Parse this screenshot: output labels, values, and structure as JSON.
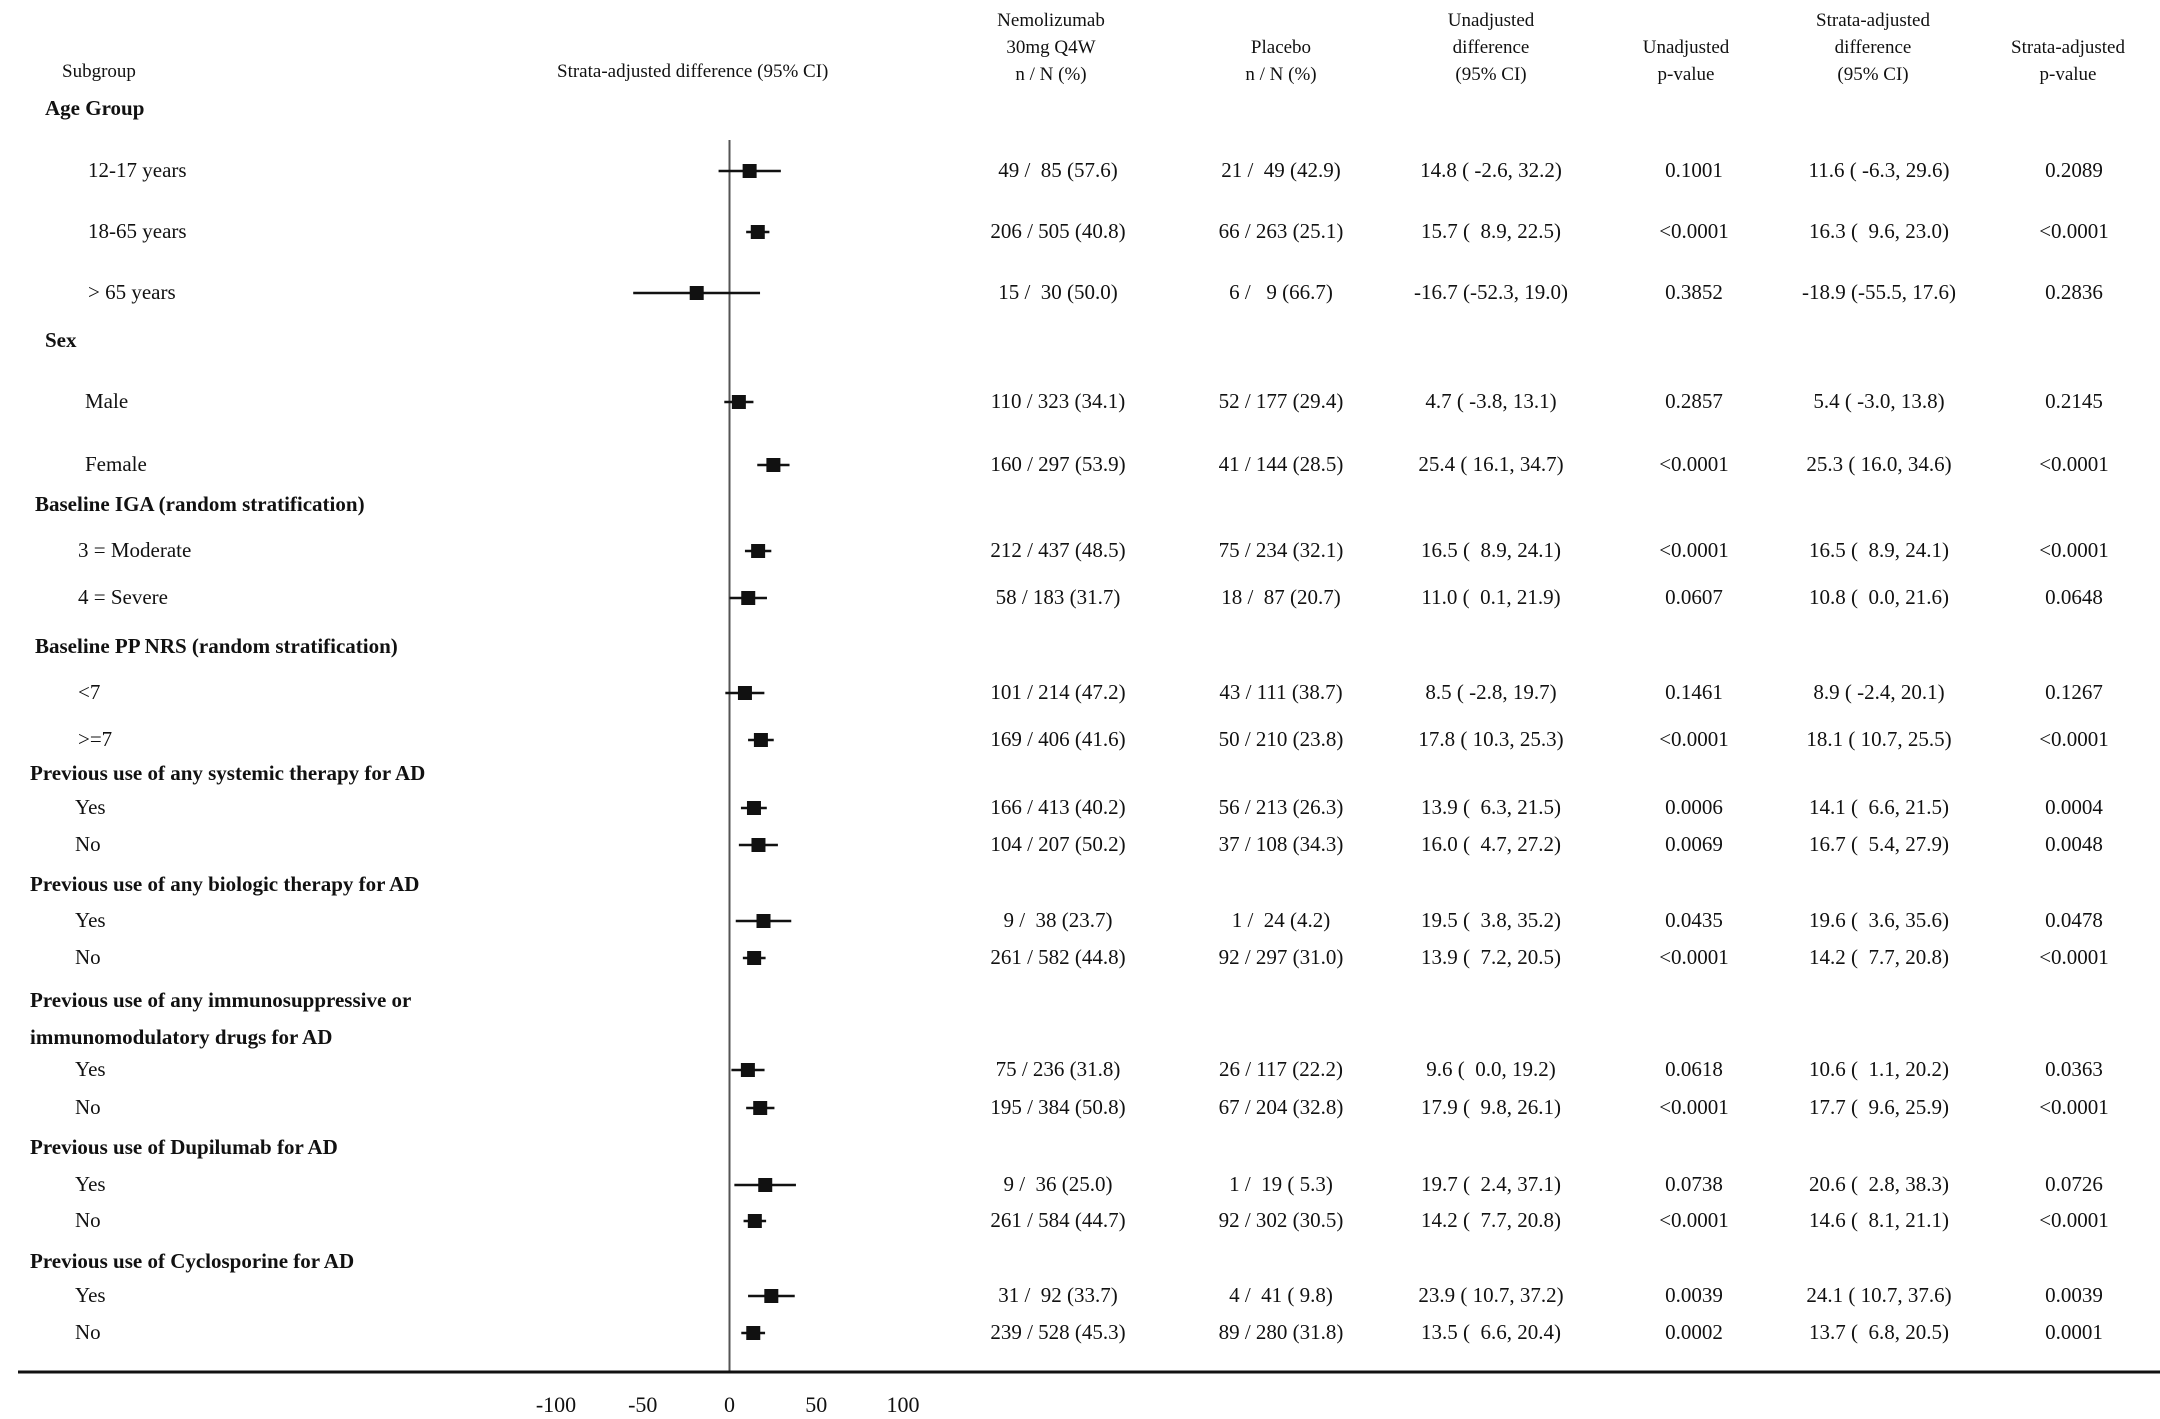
{
  "headers": {
    "subgroup": "Subgroup",
    "plot": "Strata-adjusted difference (95% CI)",
    "nemo": [
      "Nemolizumab",
      "30mg Q4W",
      "n / N (%)"
    ],
    "placebo": [
      "Placebo",
      "n / N (%)"
    ],
    "unadj_diff": [
      "Unadjusted",
      "difference",
      "(95% CI)"
    ],
    "unadj_p": [
      "Unadjusted",
      "p-value"
    ],
    "adj_diff": [
      "Strata-adjusted",
      "difference",
      "(95% CI)"
    ],
    "adj_p": [
      "Strata-adjusted",
      "p-value"
    ]
  },
  "groups": [
    {
      "label": "Age Group"
    },
    {
      "label": "Sex"
    },
    {
      "label": "Baseline IGA (random stratification)"
    },
    {
      "label": "Baseline PP NRS (random stratification)"
    },
    {
      "label": "Previous use of any systemic therapy for AD"
    },
    {
      "label": "Previous use of any biologic therapy for AD"
    },
    {
      "label": "Previous use of any immunosuppressive or"
    },
    {
      "label": "immunomodulatory drugs for AD"
    },
    {
      "label": "Previous use of Dupilumab for AD"
    },
    {
      "label": "Previous use of Cyclosporine for AD"
    }
  ],
  "rows": [
    {
      "label": "12-17 years",
      "nemo": "49 /  85 (57.6)",
      "placebo": "21 /  49 (42.9)",
      "unadj_diff": "14.8 ( -2.6, 32.2)",
      "unadj_p": "0.1001",
      "adj_diff": "11.6 ( -6.3, 29.6)",
      "adj_p": "0.2089"
    },
    {
      "label": "18-65 years",
      "nemo": "206 / 505 (40.8)",
      "placebo": "66 / 263 (25.1)",
      "unadj_diff": "15.7 (  8.9, 22.5)",
      "unadj_p": "<0.0001",
      "adj_diff": "16.3 (  9.6, 23.0)",
      "adj_p": "<0.0001"
    },
    {
      "label": "> 65 years",
      "nemo": "15 /  30 (50.0)",
      "placebo": "6 /   9 (66.7)",
      "unadj_diff": "-16.7 (-52.3, 19.0)",
      "unadj_p": "0.3852",
      "adj_diff": "-18.9 (-55.5, 17.6)",
      "adj_p": "0.2836"
    },
    {
      "label": "Male",
      "nemo": "110 / 323 (34.1)",
      "placebo": "52 / 177 (29.4)",
      "unadj_diff": "4.7 ( -3.8, 13.1)",
      "unadj_p": "0.2857",
      "adj_diff": "5.4 ( -3.0, 13.8)",
      "adj_p": "0.2145"
    },
    {
      "label": "Female",
      "nemo": "160 / 297 (53.9)",
      "placebo": "41 / 144 (28.5)",
      "unadj_diff": "25.4 ( 16.1, 34.7)",
      "unadj_p": "<0.0001",
      "adj_diff": "25.3 ( 16.0, 34.6)",
      "adj_p": "<0.0001"
    },
    {
      "label": "3 = Moderate",
      "nemo": "212 / 437 (48.5)",
      "placebo": "75 / 234 (32.1)",
      "unadj_diff": "16.5 (  8.9, 24.1)",
      "unadj_p": "<0.0001",
      "adj_diff": "16.5 (  8.9, 24.1)",
      "adj_p": "<0.0001"
    },
    {
      "label": "4 = Severe",
      "nemo": "58 / 183 (31.7)",
      "placebo": "18 /  87 (20.7)",
      "unadj_diff": "11.0 (  0.1, 21.9)",
      "unadj_p": "0.0607",
      "adj_diff": "10.8 (  0.0, 21.6)",
      "adj_p": "0.0648"
    },
    {
      "label": "<7",
      "nemo": "101 / 214 (47.2)",
      "placebo": "43 / 111 (38.7)",
      "unadj_diff": "8.5 ( -2.8, 19.7)",
      "unadj_p": "0.1461",
      "adj_diff": "8.9 ( -2.4, 20.1)",
      "adj_p": "0.1267"
    },
    {
      "label": ">=7",
      "nemo": "169 / 406 (41.6)",
      "placebo": "50 / 210 (23.8)",
      "unadj_diff": "17.8 ( 10.3, 25.3)",
      "unadj_p": "<0.0001",
      "adj_diff": "18.1 ( 10.7, 25.5)",
      "adj_p": "<0.0001"
    },
    {
      "label": "Yes",
      "nemo": "166 / 413 (40.2)",
      "placebo": "56 / 213 (26.3)",
      "unadj_diff": "13.9 (  6.3, 21.5)",
      "unadj_p": "0.0006",
      "adj_diff": "14.1 (  6.6, 21.5)",
      "adj_p": "0.0004"
    },
    {
      "label": "No",
      "nemo": "104 / 207 (50.2)",
      "placebo": "37 / 108 (34.3)",
      "unadj_diff": "16.0 (  4.7, 27.2)",
      "unadj_p": "0.0069",
      "adj_diff": "16.7 (  5.4, 27.9)",
      "adj_p": "0.0048"
    },
    {
      "label": "Yes",
      "nemo": "9 /  38 (23.7)",
      "placebo": "1 /  24 (4.2)",
      "unadj_diff": "19.5 (  3.8, 35.2)",
      "unadj_p": "0.0435",
      "adj_diff": "19.6 (  3.6, 35.6)",
      "adj_p": "0.0478"
    },
    {
      "label": "No",
      "nemo": "261 / 582 (44.8)",
      "placebo": "92 / 297 (31.0)",
      "unadj_diff": "13.9 (  7.2, 20.5)",
      "unadj_p": "<0.0001",
      "adj_diff": "14.2 (  7.7, 20.8)",
      "adj_p": "<0.0001"
    },
    {
      "label": "Yes",
      "nemo": "75 / 236 (31.8)",
      "placebo": "26 / 117 (22.2)",
      "unadj_diff": "9.6 (  0.0, 19.2)",
      "unadj_p": "0.0618",
      "adj_diff": "10.6 (  1.1, 20.2)",
      "adj_p": "0.0363"
    },
    {
      "label": "No",
      "nemo": "195 / 384 (50.8)",
      "placebo": "67 / 204 (32.8)",
      "unadj_diff": "17.9 (  9.8, 26.1)",
      "unadj_p": "<0.0001",
      "adj_diff": "17.7 (  9.6, 25.9)",
      "adj_p": "<0.0001"
    },
    {
      "label": "Yes",
      "nemo": "9 /  36 (25.0)",
      "placebo": "1 /  19 ( 5.3)",
      "unadj_diff": "19.7 (  2.4, 37.1)",
      "unadj_p": "0.0738",
      "adj_diff": "20.6 (  2.8, 38.3)",
      "adj_p": "0.0726"
    },
    {
      "label": "No",
      "nemo": "261 / 584 (44.7)",
      "placebo": "92 / 302 (30.5)",
      "unadj_diff": "14.2 (  7.7, 20.8)",
      "unadj_p": "<0.0001",
      "adj_diff": "14.6 (  8.1, 21.1)",
      "adj_p": "<0.0001"
    },
    {
      "label": "Yes",
      "nemo": "31 /  92 (33.7)",
      "placebo": "4 /  41 ( 9.8)",
      "unadj_diff": "23.9 ( 10.7, 37.2)",
      "unadj_p": "0.0039",
      "adj_diff": "24.1 ( 10.7, 37.6)",
      "adj_p": "0.0039"
    },
    {
      "label": "No",
      "nemo": "239 / 528 (45.3)",
      "placebo": "89 / 280 (31.8)",
      "unadj_diff": "13.5 (  6.6, 20.4)",
      "unadj_p": "0.0002",
      "adj_diff": "13.7 (  6.8, 20.5)",
      "adj_p": "0.0001"
    }
  ],
  "chart_data": {
    "type": "forest",
    "xlim": [
      -100,
      100
    ],
    "xticks": [
      "-100",
      "-50",
      "0",
      "50",
      "100"
    ],
    "reference_line": 0,
    "series": [
      {
        "name": "",
        "points": [
          {
            "est": 11.6,
            "lo": -6.3,
            "hi": 29.6
          },
          {
            "est": 16.3,
            "lo": 9.6,
            "hi": 23.0
          },
          {
            "est": -18.9,
            "lo": -55.5,
            "hi": 17.6
          },
          {
            "est": 5.4,
            "lo": -3.0,
            "hi": 13.8
          },
          {
            "est": 25.3,
            "lo": 16.0,
            "hi": 34.6
          },
          {
            "est": 16.5,
            "lo": 8.9,
            "hi": 24.1
          },
          {
            "est": 10.8,
            "lo": 0.0,
            "hi": 21.6
          },
          {
            "est": 8.9,
            "lo": -2.4,
            "hi": 20.1
          },
          {
            "est": 18.1,
            "lo": 10.7,
            "hi": 25.5
          },
          {
            "est": 14.1,
            "lo": 6.6,
            "hi": 21.5
          },
          {
            "est": 16.7,
            "lo": 5.4,
            "hi": 27.9
          },
          {
            "est": 19.6,
            "lo": 3.6,
            "hi": 35.6
          },
          {
            "est": 14.2,
            "lo": 7.7,
            "hi": 20.8
          },
          {
            "est": 10.6,
            "lo": 1.1,
            "hi": 20.2
          },
          {
            "est": 17.7,
            "lo": 9.6,
            "hi": 25.9
          },
          {
            "est": 20.6,
            "lo": 2.8,
            "hi": 38.3
          },
          {
            "est": 14.6,
            "lo": 8.1,
            "hi": 21.1
          },
          {
            "est": 24.1,
            "lo": 10.7,
            "hi": 37.6
          },
          {
            "est": 13.7,
            "lo": 6.8,
            "hi": 20.5
          }
        ]
      }
    ]
  }
}
